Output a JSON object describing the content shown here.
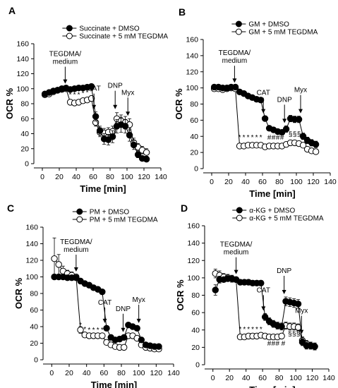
{
  "chart_data": [
    {
      "panel": "A",
      "type": "scatter",
      "xlabel": "Time [min]",
      "ylabel": "OCR %",
      "xlim": [
        -10,
        140
      ],
      "ylim": [
        0,
        160
      ],
      "xticks": [
        0,
        20,
        40,
        60,
        80,
        100,
        120,
        140
      ],
      "yticks": [
        0,
        20,
        40,
        60,
        80,
        100,
        120,
        140,
        160
      ],
      "legend_position": "top-right",
      "series": [
        {
          "name": "Succinate + DMSO",
          "marker": "filled",
          "x": [
            3,
            8,
            13,
            18,
            23,
            28,
            33,
            38,
            43,
            48,
            53,
            58,
            63,
            68,
            73,
            78,
            83,
            88,
            93,
            98,
            103,
            108,
            113,
            118,
            123
          ],
          "y": [
            93,
            95,
            97,
            98,
            100,
            101,
            99,
            100,
            101,
            101,
            102,
            103,
            63,
            44,
            33,
            32,
            36,
            50,
            52,
            50,
            38,
            25,
            12,
            7,
            6
          ],
          "err": [
            2,
            2,
            2,
            2,
            2,
            2,
            2,
            2,
            2,
            2,
            2,
            3,
            6,
            6,
            7,
            7,
            8,
            9,
            10,
            9,
            8,
            6,
            4,
            3,
            3
          ]
        },
        {
          "name": "Succinate + 5 mM TEGDMA",
          "marker": "open",
          "x": [
            3,
            8,
            13,
            18,
            23,
            28,
            33,
            38,
            43,
            48,
            53,
            58,
            63,
            68,
            73,
            78,
            83,
            88,
            93,
            98,
            103,
            108,
            113,
            118,
            123
          ],
          "y": [
            92,
            93,
            96,
            98,
            99,
            100,
            82,
            81,
            82,
            84,
            85,
            87,
            55,
            42,
            41,
            42,
            43,
            60,
            57,
            55,
            52,
            28,
            22,
            18,
            15
          ],
          "err": [
            2,
            2,
            2,
            2,
            2,
            2,
            3,
            3,
            3,
            3,
            3,
            3,
            5,
            6,
            6,
            6,
            7,
            8,
            8,
            8,
            8,
            6,
            5,
            5,
            5
          ]
        }
      ],
      "annotations": [
        {
          "text": "TEGDMA/\nmedium",
          "x": 27
        },
        {
          "text": "CAT",
          "x": 61
        },
        {
          "text": "DNP",
          "x": 86
        },
        {
          "text": "Myx",
          "x": 101
        }
      ],
      "significance": [
        {
          "text": "*",
          "x": 33,
          "y": 89
        },
        {
          "text": "*",
          "x": 38,
          "y": 89
        },
        {
          "text": "*",
          "x": 43,
          "y": 89
        },
        {
          "text": "*",
          "x": 48,
          "y": 91
        },
        {
          "text": "*",
          "x": 53,
          "y": 92
        },
        {
          "text": "*",
          "x": 58,
          "y": 93
        }
      ]
    },
    {
      "panel": "B",
      "type": "scatter",
      "xlabel": "Time [min]",
      "ylabel": "OCR %",
      "xlim": [
        -10,
        140
      ],
      "ylim": [
        0,
        160
      ],
      "xticks": [
        0,
        20,
        40,
        60,
        80,
        100,
        120,
        140
      ],
      "yticks": [
        0,
        20,
        40,
        60,
        80,
        100,
        120,
        140,
        160
      ],
      "legend_position": "top-right",
      "series": [
        {
          "name": "GM + DMSO",
          "marker": "filled",
          "x": [
            3,
            8,
            13,
            18,
            23,
            28,
            33,
            38,
            43,
            48,
            53,
            58,
            63,
            68,
            73,
            78,
            83,
            88,
            93,
            98,
            103,
            108,
            113,
            118,
            123
          ],
          "y": [
            101,
            101,
            100,
            100,
            101,
            101,
            95,
            93,
            90,
            88,
            86,
            85,
            62,
            50,
            48,
            46,
            45,
            49,
            62,
            61,
            61,
            40,
            35,
            32,
            30
          ],
          "err": [
            2,
            2,
            2,
            2,
            2,
            2,
            2,
            2,
            2,
            2,
            2,
            2,
            3,
            3,
            3,
            3,
            3,
            4,
            4,
            4,
            4,
            4,
            4,
            4,
            4
          ]
        },
        {
          "name": "GM + 5 mM TEGDMA",
          "marker": "open",
          "x": [
            3,
            8,
            13,
            18,
            23,
            28,
            33,
            38,
            43,
            48,
            53,
            58,
            63,
            68,
            73,
            78,
            83,
            88,
            93,
            98,
            103,
            108,
            113,
            118,
            123
          ],
          "y": [
            99,
            99,
            98,
            99,
            100,
            99,
            28,
            28,
            29,
            29,
            29,
            29,
            27,
            28,
            28,
            28,
            28,
            30,
            32,
            32,
            31,
            29,
            24,
            22,
            21
          ],
          "err": [
            2,
            2,
            2,
            2,
            2,
            2,
            2,
            2,
            2,
            2,
            2,
            2,
            2,
            2,
            2,
            2,
            2,
            3,
            3,
            3,
            3,
            3,
            3,
            3,
            3
          ]
        }
      ],
      "annotations": [
        {
          "text": "TEGDMA/\nmedium",
          "x": 27
        },
        {
          "text": "CAT",
          "x": 61
        },
        {
          "text": "DNP",
          "x": 86
        },
        {
          "text": "Myx",
          "x": 105
        }
      ],
      "significance": [
        {
          "text": "*",
          "x": 33,
          "y": 36
        },
        {
          "text": "*",
          "x": 38,
          "y": 36
        },
        {
          "text": "*",
          "x": 43,
          "y": 36
        },
        {
          "text": "*",
          "x": 48,
          "y": 36
        },
        {
          "text": "*",
          "x": 53,
          "y": 36
        },
        {
          "text": "*",
          "x": 58,
          "y": 36
        },
        {
          "text": "#",
          "x": 68,
          "y": 36
        },
        {
          "text": "#",
          "x": 73,
          "y": 36
        },
        {
          "text": "#",
          "x": 78,
          "y": 36
        },
        {
          "text": "#",
          "x": 83,
          "y": 36
        },
        {
          "text": "§",
          "x": 93,
          "y": 40
        },
        {
          "text": "§",
          "x": 98,
          "y": 40
        },
        {
          "text": "§",
          "x": 103,
          "y": 40
        }
      ]
    },
    {
      "panel": "C",
      "type": "scatter",
      "xlabel": "Time [min]",
      "ylabel": "OCR %",
      "xlim": [
        -10,
        140
      ],
      "ylim": [
        0,
        160
      ],
      "xticks": [
        0,
        20,
        40,
        60,
        80,
        100,
        120,
        140
      ],
      "yticks": [
        0,
        20,
        40,
        60,
        80,
        100,
        120,
        140,
        160
      ],
      "legend_position": "top-right",
      "series": [
        {
          "name": "PM + DMSO",
          "marker": "filled",
          "x": [
            3,
            8,
            13,
            18,
            23,
            28,
            33,
            38,
            43,
            48,
            53,
            58,
            63,
            68,
            73,
            78,
            83,
            88,
            93,
            98,
            103,
            108,
            113,
            118,
            123
          ],
          "y": [
            100,
            100,
            100,
            99,
            99,
            99,
            95,
            92,
            90,
            87,
            85,
            82,
            38,
            27,
            24,
            25,
            27,
            42,
            40,
            38,
            24,
            18,
            17,
            16,
            16
          ],
          "err": [
            3,
            3,
            3,
            3,
            3,
            3,
            3,
            3,
            3,
            3,
            3,
            3,
            3,
            3,
            3,
            3,
            3,
            3,
            3,
            3,
            3,
            3,
            3,
            3,
            3
          ]
        },
        {
          "name": "PM + 5 mM TEGDMA",
          "marker": "open",
          "x": [
            3,
            8,
            13,
            18,
            23,
            28,
            33,
            38,
            43,
            48,
            53,
            58,
            63,
            68,
            73,
            78,
            83,
            88,
            93,
            98,
            103,
            108,
            113,
            118,
            123
          ],
          "y": [
            122,
            115,
            107,
            104,
            102,
            100,
            36,
            30,
            29,
            29,
            29,
            29,
            21,
            18,
            16,
            15,
            15,
            29,
            29,
            26,
            18,
            15,
            14,
            13,
            13
          ],
          "err": [
            25,
            12,
            6,
            4,
            4,
            3,
            4,
            3,
            3,
            3,
            3,
            3,
            3,
            3,
            3,
            3,
            3,
            3,
            3,
            3,
            3,
            3,
            3,
            3,
            3
          ]
        }
      ],
      "annotations": [
        {
          "text": "TEGDMA/\nmedium",
          "x": 28
        },
        {
          "text": "CAT",
          "x": 61
        },
        {
          "text": "DNP",
          "x": 82
        },
        {
          "text": "Myx",
          "x": 100
        }
      ],
      "significance": [
        {
          "text": "*",
          "x": 33,
          "y": 39
        },
        {
          "text": "*",
          "x": 38,
          "y": 34
        },
        {
          "text": "*",
          "x": 43,
          "y": 33
        },
        {
          "text": "*",
          "x": 48,
          "y": 33
        },
        {
          "text": "*",
          "x": 53,
          "y": 33
        },
        {
          "text": "*",
          "x": 58,
          "y": 33
        }
      ]
    },
    {
      "panel": "D",
      "type": "scatter",
      "xlabel": "Time [min]",
      "ylabel": "OCR %",
      "xlim": [
        -10,
        140
      ],
      "ylim": [
        0,
        160
      ],
      "xticks": [
        0,
        20,
        40,
        60,
        80,
        100,
        120,
        140
      ],
      "yticks": [
        0,
        20,
        40,
        60,
        80,
        100,
        120,
        140,
        160
      ],
      "legend_position": "top-right",
      "series": [
        {
          "name": "α-KG + DMSO",
          "marker": "filled",
          "x": [
            3,
            8,
            13,
            18,
            23,
            28,
            33,
            38,
            43,
            48,
            53,
            58,
            63,
            68,
            73,
            78,
            83,
            88,
            93,
            98,
            103,
            108,
            113,
            118,
            123
          ],
          "y": [
            86,
            98,
            98,
            99,
            99,
            98,
            95,
            95,
            95,
            94,
            94,
            94,
            55,
            50,
            47,
            45,
            44,
            73,
            72,
            71,
            70,
            26,
            22,
            22,
            21
          ],
          "err": [
            6,
            4,
            3,
            3,
            3,
            3,
            3,
            3,
            3,
            3,
            3,
            3,
            4,
            4,
            4,
            4,
            4,
            5,
            5,
            5,
            5,
            4,
            4,
            4,
            4
          ]
        },
        {
          "name": "α-KG + 5 mM TEGDMA",
          "marker": "open",
          "x": [
            3,
            8,
            13,
            18,
            23,
            28,
            33,
            38,
            43,
            48,
            53,
            58,
            63,
            68,
            73,
            78,
            83,
            88,
            93,
            98,
            103,
            108,
            113,
            118,
            123
          ],
          "y": [
            105,
            103,
            101,
            100,
            99,
            98,
            32,
            32,
            33,
            33,
            33,
            34,
            33,
            32,
            32,
            32,
            33,
            45,
            44,
            44,
            43,
            28,
            24,
            22,
            21
          ],
          "err": [
            5,
            5,
            4,
            4,
            4,
            3,
            3,
            3,
            3,
            3,
            3,
            3,
            3,
            3,
            3,
            3,
            3,
            4,
            4,
            4,
            4,
            4,
            4,
            4,
            4
          ]
        }
      ],
      "annotations": [
        {
          "text": "TEGDMA/\nmedium",
          "x": 28
        },
        {
          "text": "CAT",
          "x": 61
        },
        {
          "text": "DNP",
          "x": 86
        },
        {
          "text": "Myx",
          "x": 107
        }
      ],
      "significance": [
        {
          "text": "*",
          "x": 33,
          "y": 38
        },
        {
          "text": "*",
          "x": 38,
          "y": 38
        },
        {
          "text": "*",
          "x": 43,
          "y": 38
        },
        {
          "text": "*",
          "x": 48,
          "y": 38
        },
        {
          "text": "*",
          "x": 53,
          "y": 38
        },
        {
          "text": "*",
          "x": 58,
          "y": 38
        },
        {
          "text": "#",
          "x": 68,
          "y": 22
        },
        {
          "text": "#",
          "x": 73,
          "y": 22
        },
        {
          "text": "#",
          "x": 78,
          "y": 22
        },
        {
          "text": "#",
          "x": 85,
          "y": 22
        },
        {
          "text": "§",
          "x": 93,
          "y": 33
        },
        {
          "text": "§",
          "x": 98,
          "y": 33
        },
        {
          "text": "§",
          "x": 103,
          "y": 33
        }
      ]
    }
  ]
}
